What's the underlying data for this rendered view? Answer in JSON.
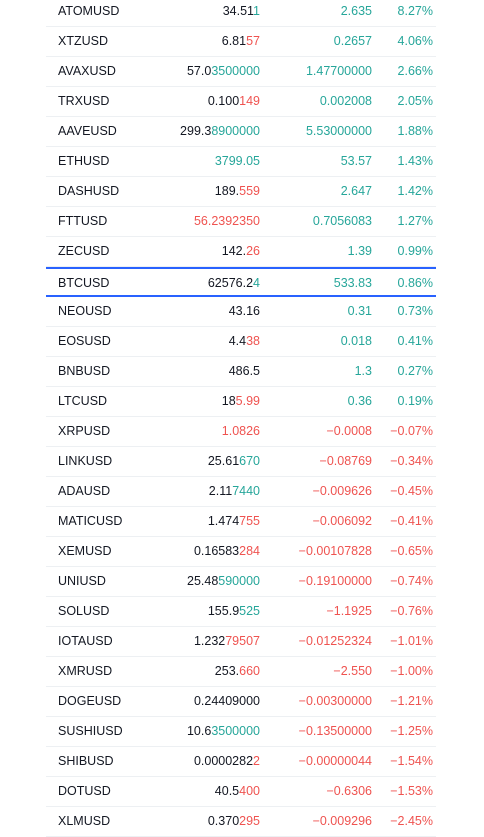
{
  "colors": {
    "up": "#26a69a",
    "down": "#ef5350",
    "neutral": "#131722",
    "selected_border": "#2962ff"
  },
  "watchlist": [
    {
      "symbol": "ATOMUSD",
      "last_base": "34.51",
      "last_tick": "1",
      "last_color": "up",
      "change": "2.635",
      "change_pct": "8.27%",
      "direction": "up"
    },
    {
      "symbol": "XTZUSD",
      "last_base": "6.81",
      "last_tick": "57",
      "last_color": "down",
      "change": "0.2657",
      "change_pct": "4.06%",
      "direction": "up"
    },
    {
      "symbol": "AVAXUSD",
      "last_base": "57.0",
      "last_tick": "3500000",
      "last_color": "up",
      "change": "1.47700000",
      "change_pct": "2.66%",
      "direction": "up"
    },
    {
      "symbol": "TRXUSD",
      "last_base": "0.100",
      "last_tick": "149",
      "last_color": "down",
      "change": "0.002008",
      "change_pct": "2.05%",
      "direction": "up"
    },
    {
      "symbol": "AAVEUSD",
      "last_base": "299.3",
      "last_tick": "8900000",
      "last_color": "up",
      "change": "5.53000000",
      "change_pct": "1.88%",
      "direction": "up"
    },
    {
      "symbol": "ETHUSD",
      "last_base": "",
      "last_tick": "3799.05",
      "last_color": "up",
      "change": "53.57",
      "change_pct": "1.43%",
      "direction": "up"
    },
    {
      "symbol": "DASHUSD",
      "last_base": "189.",
      "last_tick": "559",
      "last_color": "down",
      "change": "2.647",
      "change_pct": "1.42%",
      "direction": "up"
    },
    {
      "symbol": "FTTUSD",
      "last_base": "",
      "last_tick": "56.2392350",
      "last_color": "down",
      "change": "0.7056083",
      "change_pct": "1.27%",
      "direction": "up"
    },
    {
      "symbol": "ZECUSD",
      "last_base": "142.",
      "last_tick": "26",
      "last_color": "down",
      "change": "1.39",
      "change_pct": "0.99%",
      "direction": "up"
    },
    {
      "symbol": "BTCUSD",
      "last_base": "62576.2",
      "last_tick": "4",
      "last_color": "up",
      "change": "533.83",
      "change_pct": "0.86%",
      "direction": "up",
      "selected": true
    },
    {
      "symbol": "NEOUSD",
      "last_base": "43.16",
      "last_tick": "",
      "last_color": "neutral",
      "change": "0.31",
      "change_pct": "0.73%",
      "direction": "up"
    },
    {
      "symbol": "EOSUSD",
      "last_base": "4.4",
      "last_tick": "38",
      "last_color": "down",
      "change": "0.018",
      "change_pct": "0.41%",
      "direction": "up"
    },
    {
      "symbol": "BNBUSD",
      "last_base": "486.5",
      "last_tick": "",
      "last_color": "neutral",
      "change": "1.3",
      "change_pct": "0.27%",
      "direction": "up"
    },
    {
      "symbol": "LTCUSD",
      "last_base": "18",
      "last_tick": "5.99",
      "last_color": "down",
      "change": "0.36",
      "change_pct": "0.19%",
      "direction": "up"
    },
    {
      "symbol": "XRPUSD",
      "last_base": "",
      "last_tick": "1.0826",
      "last_color": "down",
      "change": "−0.0008",
      "change_pct": "−0.07%",
      "direction": "down"
    },
    {
      "symbol": "LINKUSD",
      "last_base": "25.61",
      "last_tick": "670",
      "last_color": "up",
      "change": "−0.08769",
      "change_pct": "−0.34%",
      "direction": "down"
    },
    {
      "symbol": "ADAUSD",
      "last_base": "2.11",
      "last_tick": "7440",
      "last_color": "up",
      "change": "−0.009626",
      "change_pct": "−0.45%",
      "direction": "down"
    },
    {
      "symbol": "MATICUSD",
      "last_base": "1.474",
      "last_tick": "755",
      "last_color": "down",
      "change": "−0.006092",
      "change_pct": "−0.41%",
      "direction": "down"
    },
    {
      "symbol": "XEMUSD",
      "last_base": "0.16583",
      "last_tick": "284",
      "last_color": "down",
      "change": "−0.00107828",
      "change_pct": "−0.65%",
      "direction": "down"
    },
    {
      "symbol": "UNIUSD",
      "last_base": "25.48",
      "last_tick": "590000",
      "last_color": "up",
      "change": "−0.19100000",
      "change_pct": "−0.74%",
      "direction": "down"
    },
    {
      "symbol": "SOLUSD",
      "last_base": "155.9",
      "last_tick": "525",
      "last_color": "up",
      "change": "−1.1925",
      "change_pct": "−0.76%",
      "direction": "down"
    },
    {
      "symbol": "IOTAUSD",
      "last_base": "1.232",
      "last_tick": "79507",
      "last_color": "down",
      "change": "−0.01252324",
      "change_pct": "−1.01%",
      "direction": "down"
    },
    {
      "symbol": "XMRUSD",
      "last_base": "253.",
      "last_tick": "660",
      "last_color": "down",
      "change": "−2.550",
      "change_pct": "−1.00%",
      "direction": "down"
    },
    {
      "symbol": "DOGEUSD",
      "last_base": "0.24409000",
      "last_tick": "",
      "last_color": "neutral",
      "change": "−0.00300000",
      "change_pct": "−1.21%",
      "direction": "down"
    },
    {
      "symbol": "SUSHIUSD",
      "last_base": "10.6",
      "last_tick": "3500000",
      "last_color": "up",
      "change": "−0.13500000",
      "change_pct": "−1.25%",
      "direction": "down"
    },
    {
      "symbol": "SHIBUSD",
      "last_base": "0.0000282",
      "last_tick": "2",
      "last_color": "down",
      "change": "−0.00000044",
      "change_pct": "−1.54%",
      "direction": "down"
    },
    {
      "symbol": "DOTUSD",
      "last_base": "40.5",
      "last_tick": "400",
      "last_color": "down",
      "change": "−0.6306",
      "change_pct": "−1.53%",
      "direction": "down"
    },
    {
      "symbol": "XLMUSD",
      "last_base": "0.370",
      "last_tick": "295",
      "last_color": "down",
      "change": "−0.009296",
      "change_pct": "−2.45%",
      "direction": "down"
    }
  ]
}
